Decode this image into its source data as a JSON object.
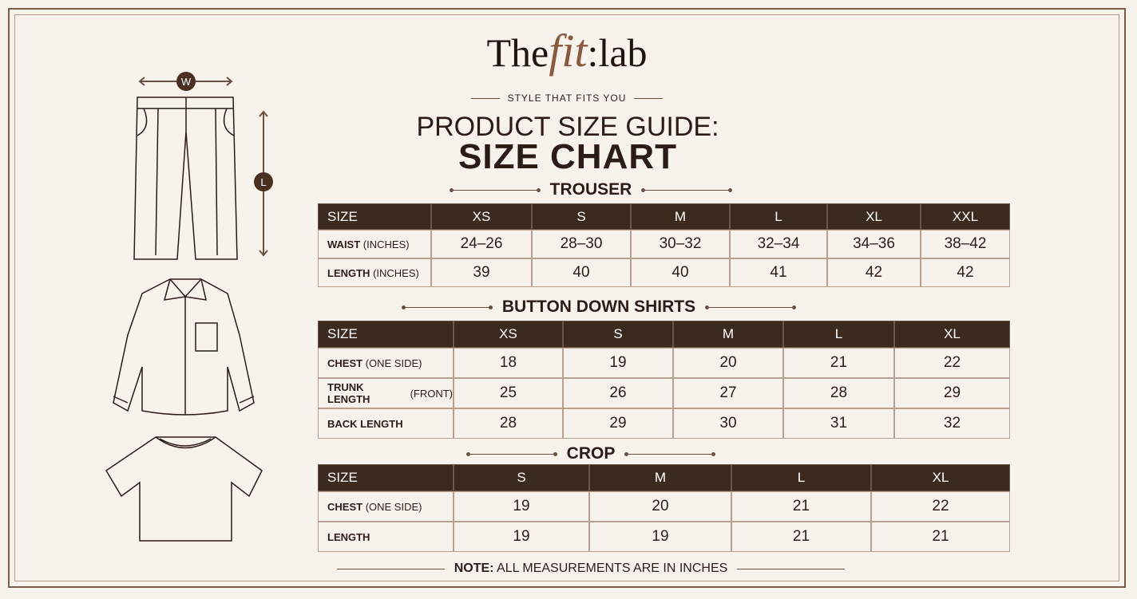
{
  "logo": {
    "the": "The",
    "fit": "fit",
    "lab": ":lab"
  },
  "tagline": "STYLE THAT FITS YOU",
  "title": "PRODUCT SIZE GUIDE:",
  "subtitle": "SIZE CHART",
  "illustrations": {
    "width_label": "W",
    "length_label": "L"
  },
  "tables": [
    {
      "title": "TROUSER",
      "header": [
        "SIZE",
        "XS",
        "S",
        "M",
        "L",
        "XL",
        "XXL"
      ],
      "rows": [
        {
          "label": "WAIST",
          "unit": "(INCHES)",
          "values": [
            "24–26",
            "28–30",
            "30–32",
            "32–34",
            "34–36",
            "38–42"
          ]
        },
        {
          "label": "LENGTH",
          "unit": "(INCHES)",
          "values": [
            39,
            40,
            40,
            41,
            42,
            42
          ]
        }
      ]
    },
    {
      "title": "BUTTON DOWN SHIRTS",
      "header": [
        "SIZE",
        "XS",
        "S",
        "M",
        "L",
        "XL"
      ],
      "rows": [
        {
          "label": "CHEST",
          "unit": "(ONE SIDE)",
          "values": [
            18,
            19,
            20,
            21,
            22
          ]
        },
        {
          "label": "TRUNK LENGTH",
          "unit": "(FRONT)",
          "values": [
            25,
            26,
            27,
            28,
            29
          ]
        },
        {
          "label": "BACK LENGTH",
          "values": [
            28,
            29,
            30,
            31,
            32
          ]
        }
      ]
    },
    {
      "title": "CROP",
      "header": [
        "SIZE",
        "S",
        "M",
        "L",
        "XL"
      ],
      "rows": [
        {
          "label": "CHEST",
          "unit": "(ONE SIDE)",
          "values": [
            19,
            20,
            21,
            22
          ]
        },
        {
          "label": "LENGTH",
          "values": [
            19,
            19,
            21,
            21
          ]
        }
      ]
    }
  ],
  "note": {
    "label": "NOTE:",
    "text": "ALL MEASUREMENTS ARE IN INCHES"
  }
}
